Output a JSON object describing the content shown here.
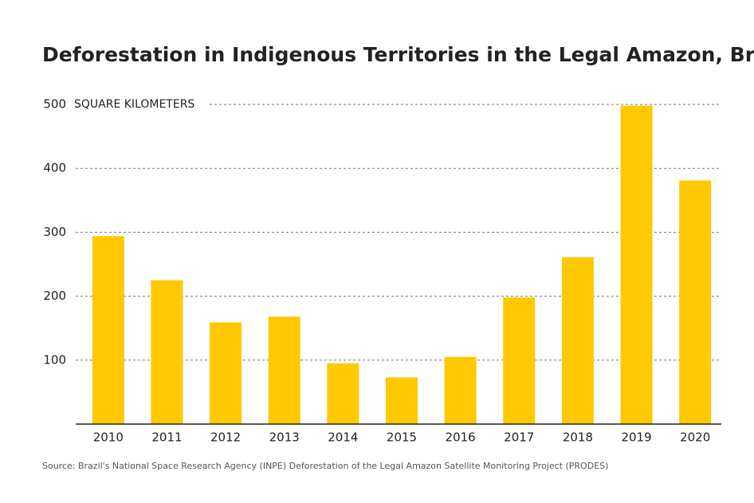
{
  "chart_data": {
    "type": "bar",
    "title": "Deforestation in Indigenous Territories in the Legal Amazon, Brazil",
    "y_label": "SQUARE KILOMETERS",
    "source": "Source: Brazil's National Space Research Agency (INPE) Deforestation of the Legal Amazon Satellite Monitoring Project (PRODES)",
    "categories": [
      "2010",
      "2011",
      "2012",
      "2013",
      "2014",
      "2015",
      "2016",
      "2017",
      "2018",
      "2019",
      "2020"
    ],
    "values": [
      294,
      225,
      159,
      168,
      95,
      73,
      105,
      198,
      261,
      498,
      381
    ],
    "color": "#ffc800",
    "ylim": [
      0,
      500
    ],
    "yticks": [
      100,
      200,
      300,
      400,
      500
    ],
    "grid": true
  }
}
